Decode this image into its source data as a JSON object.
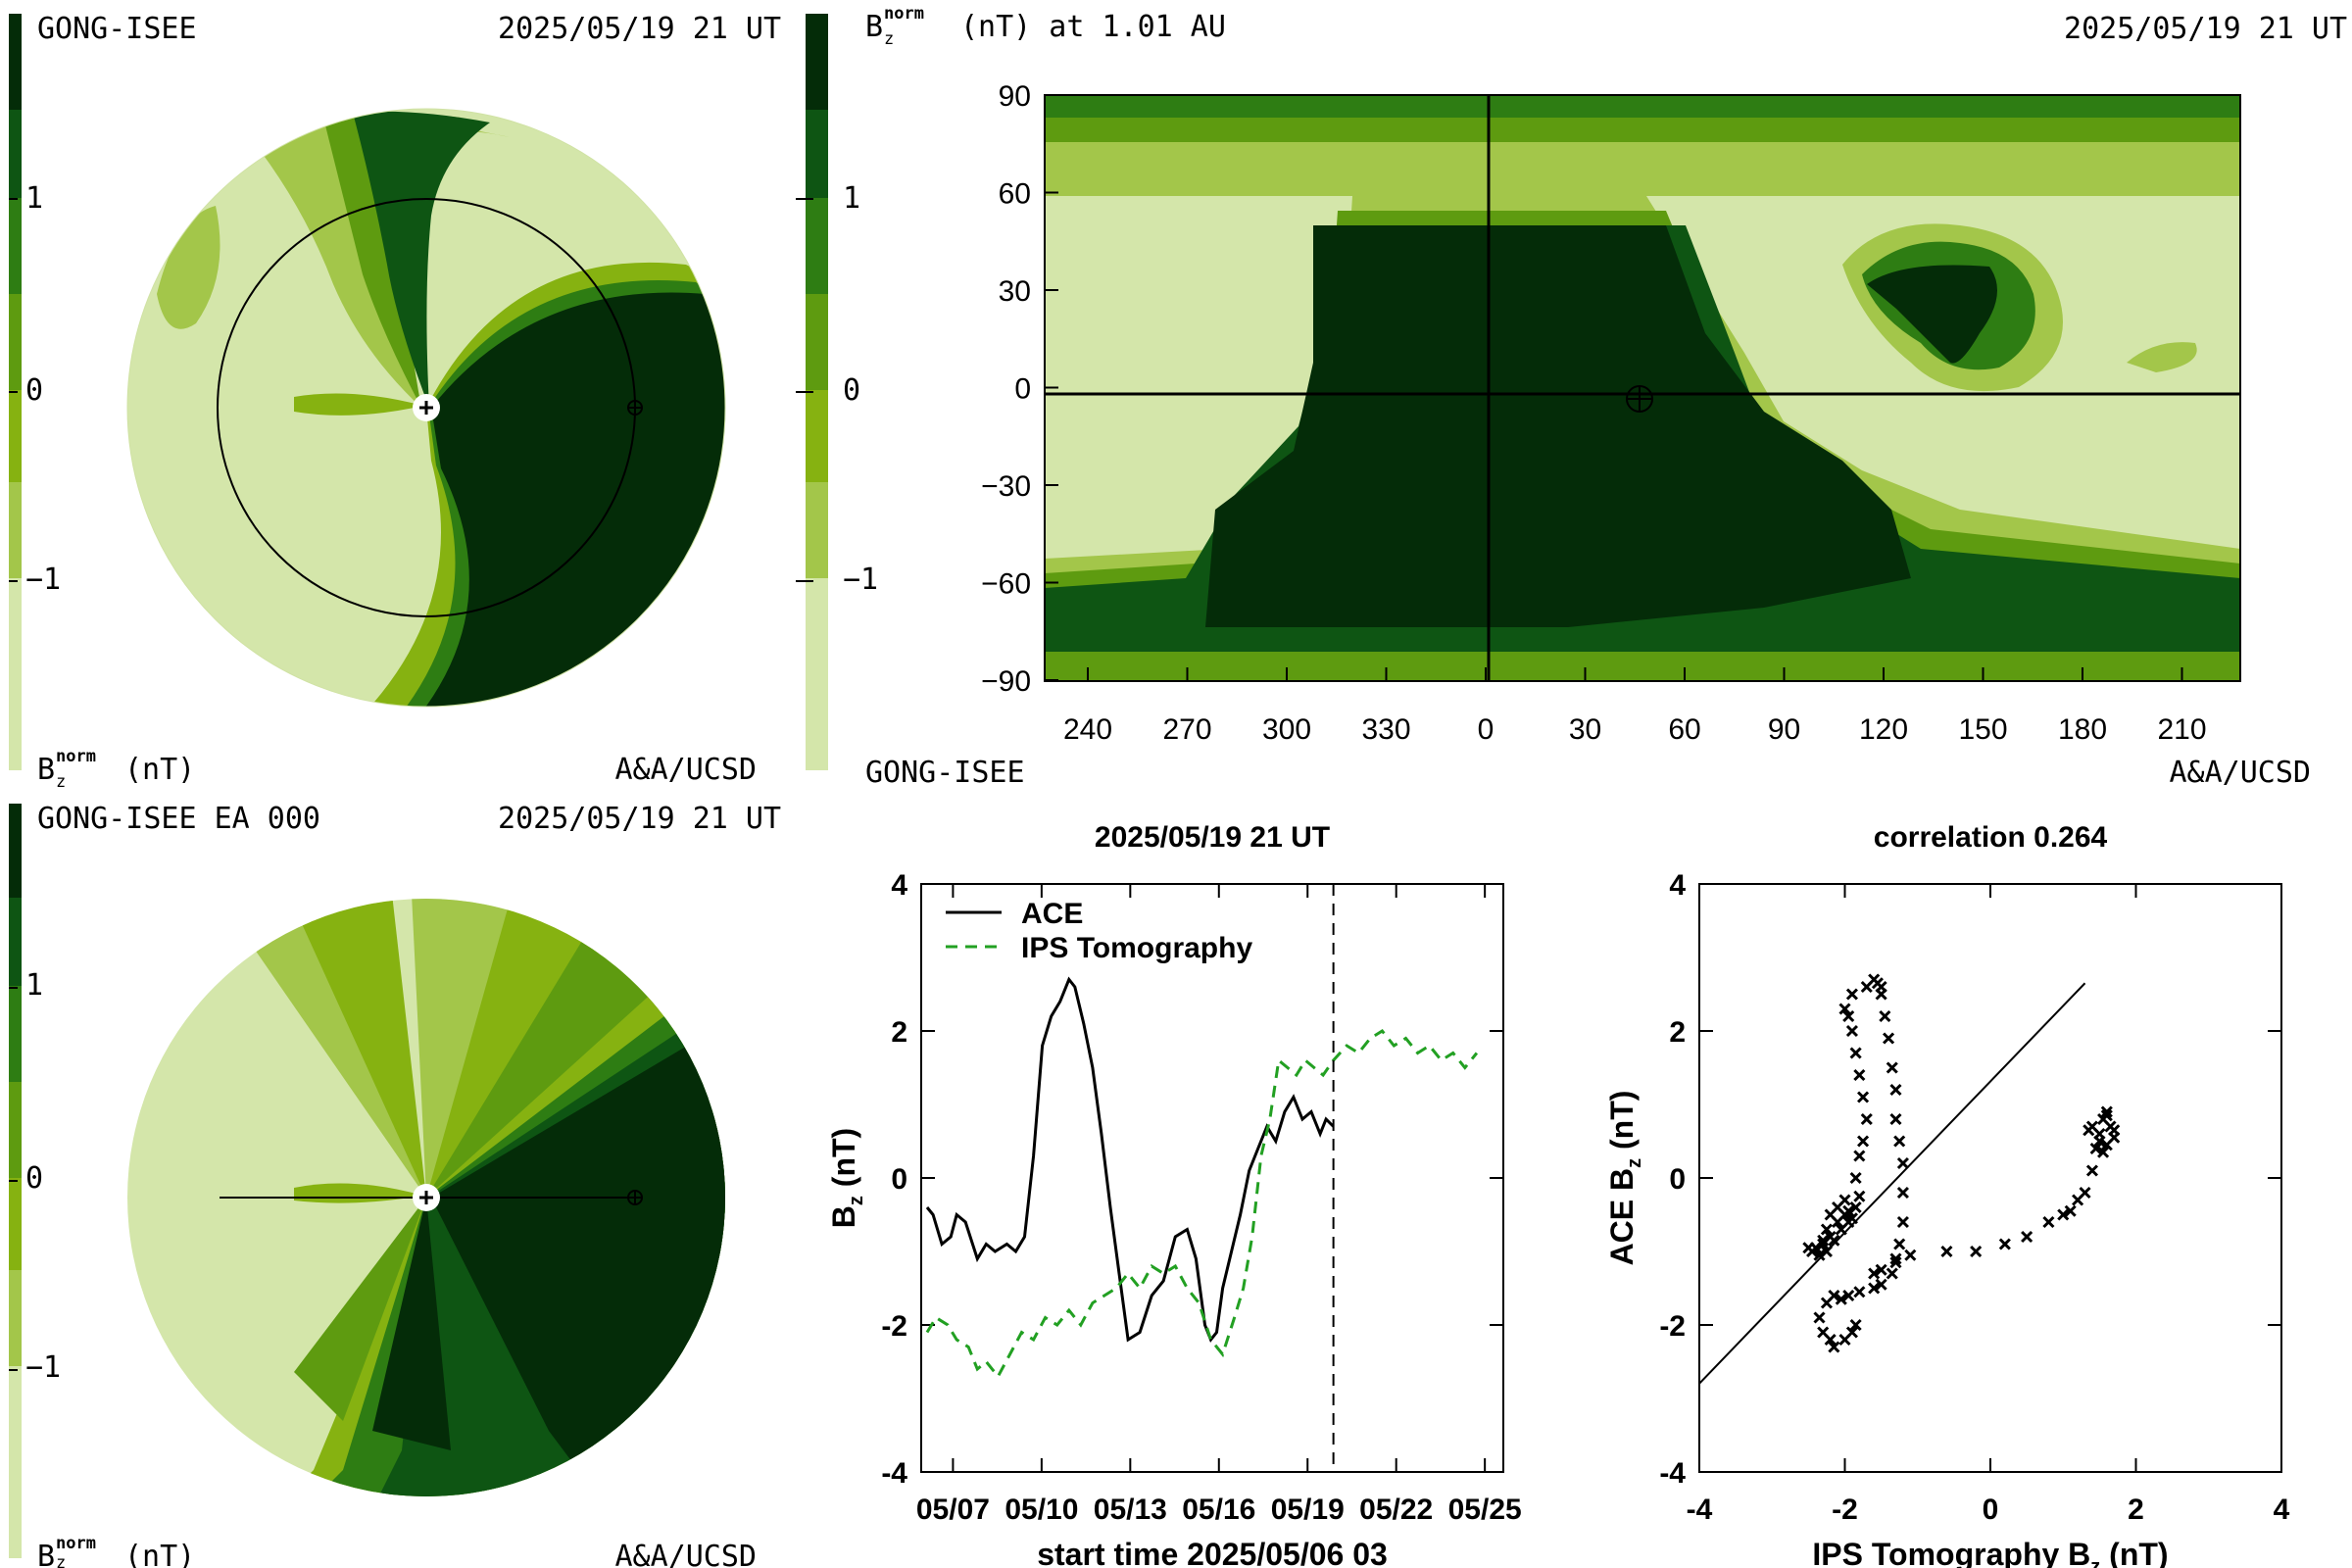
{
  "colors": {
    "c0": "#d4e6aa",
    "c1": "#a3c64a",
    "c2": "#86b211",
    "c3": "#5e9b10",
    "c4": "#2e7d13",
    "c5": "#0e5513",
    "c6": "#042c08",
    "ips_dash": "#22a022",
    "ace": "#000000"
  },
  "panel_tl": {
    "left_label": "GONG-ISEE",
    "right_label": "2025/05/19 21 UT",
    "bottom_left": "(nT)",
    "bottom_right": "A&A/UCSD",
    "cb_ticks": [
      "1",
      "0",
      "−1"
    ]
  },
  "panel_bl": {
    "left_label": "GONG-ISEE EA 000",
    "right_label": "2025/05/19 21 UT",
    "bottom_left": "(nT)",
    "bottom_right": "A&A/UCSD",
    "cb_ticks": [
      "1",
      "0",
      "−1"
    ]
  },
  "bnorm": {
    "base": "B",
    "sub": "z",
    "sup": "norm"
  },
  "panel_map": {
    "title_rest": "(nT) at 1.01 AU",
    "right_label": "2025/05/19 21 UT",
    "bottom_left": "GONG-ISEE",
    "bottom_right": "A&A/UCSD",
    "cb_ticks": [
      "1",
      "0",
      "−1"
    ],
    "y_ticks": [
      "90",
      "60",
      "30",
      "0",
      "−30",
      "−60",
      "−90"
    ],
    "x_ticks": [
      "240",
      "270",
      "300",
      "330",
      "0",
      "30",
      "60",
      "90",
      "120",
      "150",
      "180",
      "210"
    ]
  },
  "chart_data": [
    {
      "type": "line",
      "title": "2025/05/19 21 UT",
      "xlabel": "start time 2025/05/06 03",
      "ylabel": "B_z (nT)",
      "ylim": [
        -4,
        4
      ],
      "y_ticks": [
        "4",
        "2",
        "0",
        "-2",
        "-4"
      ],
      "x_ticks": [
        "05/07",
        "05/10",
        "05/13",
        "05/16",
        "05/19",
        "05/22",
        "05/25"
      ],
      "xlim_days": [
        -0.2,
        19.5
      ],
      "current_time_day": 13.75,
      "series": [
        {
          "name": "ACE",
          "style": "solid",
          "x": [
            0.0,
            0.2,
            0.5,
            0.8,
            1.0,
            1.3,
            1.7,
            2.0,
            2.3,
            2.7,
            3.0,
            3.3,
            3.6,
            3.9,
            4.2,
            4.5,
            4.8,
            5.0,
            5.3,
            5.6,
            5.9,
            6.2,
            6.5,
            6.8,
            7.2,
            7.6,
            8.0,
            8.4,
            8.8,
            9.1,
            9.4,
            9.6,
            9.8,
            10.0,
            10.3,
            10.6,
            10.9,
            11.2,
            11.5,
            11.8,
            12.1,
            12.4,
            12.7,
            13.0,
            13.3,
            13.5,
            13.75
          ],
          "y": [
            -0.4,
            -0.5,
            -0.9,
            -0.8,
            -0.5,
            -0.6,
            -1.1,
            -0.9,
            -1.0,
            -0.9,
            -1.0,
            -0.8,
            0.3,
            1.8,
            2.2,
            2.4,
            2.7,
            2.6,
            2.1,
            1.5,
            0.6,
            -0.4,
            -1.3,
            -2.2,
            -2.1,
            -1.6,
            -1.4,
            -0.8,
            -0.7,
            -1.1,
            -2.0,
            -2.2,
            -2.1,
            -1.5,
            -1.0,
            -0.5,
            0.1,
            0.4,
            0.7,
            0.5,
            0.9,
            1.1,
            0.8,
            0.9,
            0.6,
            0.8,
            0.7
          ]
        },
        {
          "name": "IPS Tomography",
          "style": "dashed",
          "x": [
            0.0,
            0.3,
            0.7,
            1.0,
            1.4,
            1.7,
            2.0,
            2.4,
            2.8,
            3.2,
            3.6,
            4.0,
            4.4,
            4.8,
            5.2,
            5.6,
            6.0,
            6.4,
            6.8,
            7.2,
            7.6,
            8.0,
            8.4,
            8.8,
            9.2,
            9.6,
            10.0,
            10.4,
            10.7,
            11.0,
            11.3,
            11.6,
            11.9,
            12.2,
            12.5,
            12.8,
            13.1,
            13.4,
            13.75,
            14.2,
            14.6,
            15.0,
            15.4,
            15.8,
            16.2,
            16.6,
            17.0,
            17.4,
            17.8,
            18.2,
            18.6
          ],
          "y": [
            -2.1,
            -1.9,
            -2.0,
            -2.2,
            -2.3,
            -2.6,
            -2.5,
            -2.7,
            -2.4,
            -2.1,
            -2.2,
            -1.9,
            -2.0,
            -1.8,
            -2.0,
            -1.7,
            -1.6,
            -1.5,
            -1.3,
            -1.5,
            -1.2,
            -1.3,
            -1.2,
            -1.5,
            -1.7,
            -2.2,
            -2.4,
            -1.9,
            -1.5,
            -0.8,
            0.3,
            0.8,
            1.6,
            1.5,
            1.4,
            1.6,
            1.5,
            1.4,
            1.6,
            1.8,
            1.7,
            1.9,
            2.0,
            1.8,
            1.9,
            1.7,
            1.8,
            1.6,
            1.7,
            1.5,
            1.7
          ]
        }
      ]
    },
    {
      "type": "scatter",
      "title": "correlation 0.264",
      "xlabel": "IPS Tomography B_z (nT)",
      "ylabel": "ACE B_z (nT)",
      "xlim": [
        -4,
        4
      ],
      "ylim": [
        -4,
        4
      ],
      "x_ticks": [
        "-4",
        "-2",
        "0",
        "2",
        "4"
      ],
      "y_ticks": [
        "4",
        "2",
        "0",
        "-2",
        "-4"
      ],
      "fit_line": {
        "x": [
          -4.1,
          1.3
        ],
        "y": [
          -2.9,
          2.65
        ]
      },
      "points": [
        [
          -2.5,
          -0.95
        ],
        [
          -2.45,
          -1.0
        ],
        [
          -2.4,
          -0.95
        ],
        [
          -2.35,
          -1.05
        ],
        [
          -2.3,
          -0.9
        ],
        [
          -2.25,
          -1.0
        ],
        [
          -2.2,
          -0.8
        ],
        [
          -2.15,
          -0.85
        ],
        [
          -2.1,
          -0.6
        ],
        [
          -2.05,
          -0.7
        ],
        [
          -2.0,
          -0.5
        ],
        [
          -1.95,
          -0.45
        ],
        [
          -1.9,
          -0.55
        ],
        [
          -2.0,
          -0.3
        ],
        [
          -2.1,
          -0.4
        ],
        [
          -2.2,
          -0.5
        ],
        [
          -2.25,
          -0.7
        ],
        [
          -2.3,
          -0.85
        ],
        [
          -1.95,
          -0.6
        ],
        [
          -1.85,
          -0.4
        ],
        [
          -1.8,
          -0.25
        ],
        [
          -1.85,
          0.0
        ],
        [
          -1.8,
          0.3
        ],
        [
          -1.75,
          0.5
        ],
        [
          -1.7,
          0.8
        ],
        [
          -1.75,
          1.1
        ],
        [
          -1.8,
          1.4
        ],
        [
          -1.85,
          1.7
        ],
        [
          -1.9,
          2.0
        ],
        [
          -1.95,
          2.2
        ],
        [
          -2.0,
          2.3
        ],
        [
          -1.9,
          2.5
        ],
        [
          -1.7,
          2.6
        ],
        [
          -1.6,
          2.7
        ],
        [
          -1.55,
          2.65
        ],
        [
          -1.5,
          2.6
        ],
        [
          -1.5,
          2.5
        ],
        [
          -1.45,
          2.2
        ],
        [
          -1.4,
          1.9
        ],
        [
          -1.35,
          1.5
        ],
        [
          -1.3,
          1.2
        ],
        [
          -1.3,
          0.8
        ],
        [
          -1.25,
          0.5
        ],
        [
          -1.2,
          0.2
        ],
        [
          -1.2,
          -0.2
        ],
        [
          -1.2,
          -0.6
        ],
        [
          -1.25,
          -0.9
        ],
        [
          -1.3,
          -1.1
        ],
        [
          -1.35,
          -1.3
        ],
        [
          -1.5,
          -1.45
        ],
        [
          -1.6,
          -1.5
        ],
        [
          -1.8,
          -1.55
        ],
        [
          -1.95,
          -1.6
        ],
        [
          -2.05,
          -1.65
        ],
        [
          -2.15,
          -1.6
        ],
        [
          -2.25,
          -1.7
        ],
        [
          -2.35,
          -1.9
        ],
        [
          -2.3,
          -2.1
        ],
        [
          -2.2,
          -2.2
        ],
        [
          -2.15,
          -2.3
        ],
        [
          -2.0,
          -2.2
        ],
        [
          -1.9,
          -2.1
        ],
        [
          -1.85,
          -2.0
        ],
        [
          -1.6,
          -1.3
        ],
        [
          -1.5,
          -1.25
        ],
        [
          -1.3,
          -1.15
        ],
        [
          -1.1,
          -1.05
        ],
        [
          -0.6,
          -1.0
        ],
        [
          -0.2,
          -1.0
        ],
        [
          0.2,
          -0.9
        ],
        [
          0.5,
          -0.8
        ],
        [
          0.8,
          -0.6
        ],
        [
          1.0,
          -0.5
        ],
        [
          1.1,
          -0.45
        ],
        [
          1.2,
          -0.3
        ],
        [
          1.3,
          -0.2
        ],
        [
          1.4,
          0.1
        ],
        [
          1.45,
          0.4
        ],
        [
          1.5,
          0.6
        ],
        [
          1.55,
          0.8
        ],
        [
          1.6,
          0.85
        ],
        [
          1.65,
          0.7
        ],
        [
          1.7,
          0.55
        ],
        [
          1.6,
          0.45
        ],
        [
          1.55,
          0.35
        ],
        [
          1.7,
          0.65
        ],
        [
          1.6,
          0.9
        ],
        [
          1.4,
          0.7
        ],
        [
          1.35,
          0.65
        ],
        [
          1.5,
          0.5
        ]
      ]
    }
  ]
}
